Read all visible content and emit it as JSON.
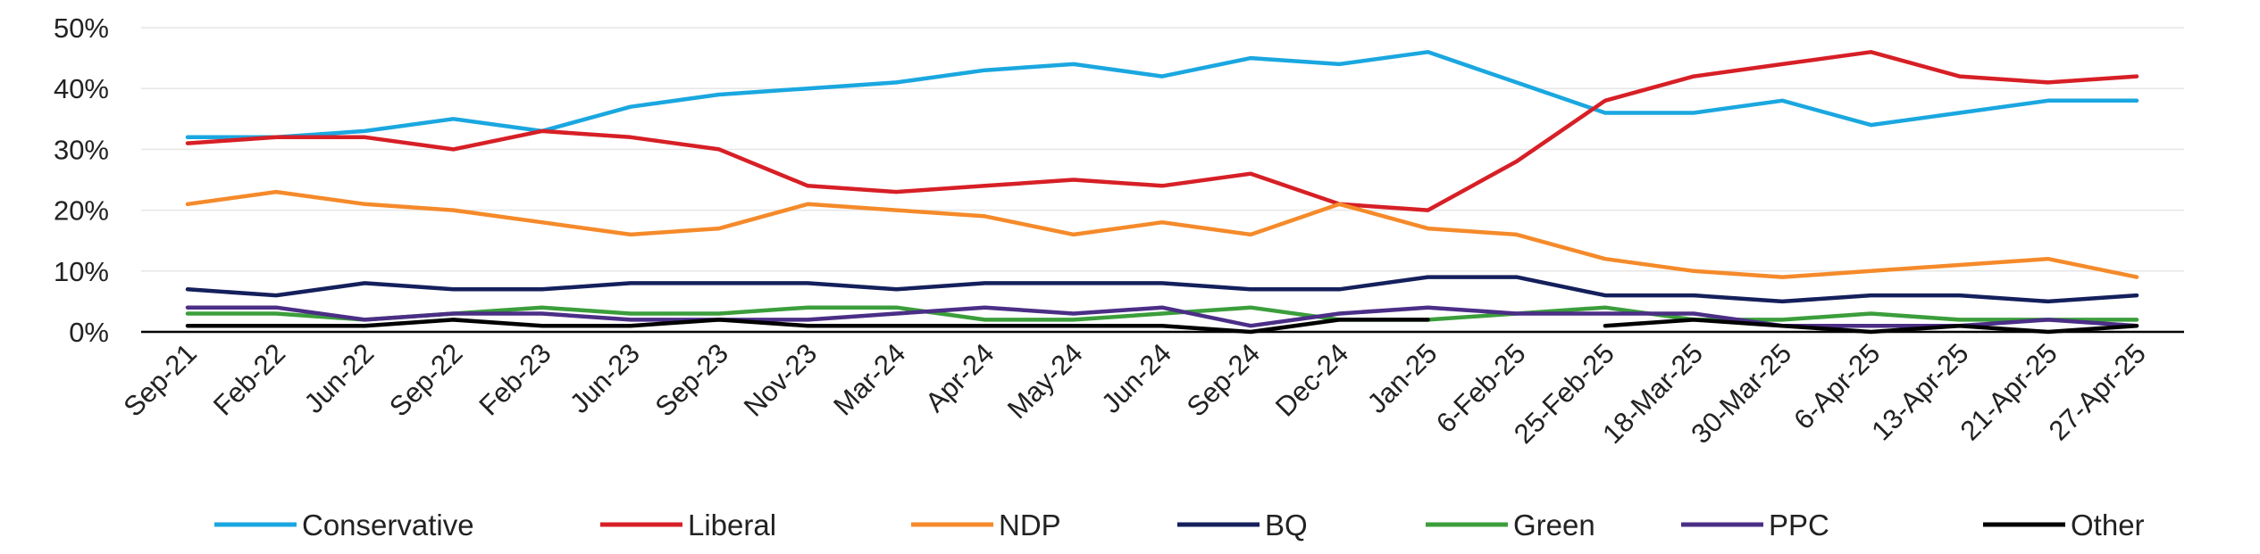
{
  "chart_data": {
    "type": "line",
    "title": "",
    "xlabel": "",
    "ylabel": "",
    "ylim": [
      0,
      50
    ],
    "yticks": [
      "0%",
      "10%",
      "20%",
      "30%",
      "40%",
      "50%"
    ],
    "ytick_values": [
      0,
      10,
      20,
      30,
      40,
      50
    ],
    "grid": true,
    "legend": "bottom",
    "categories": [
      "Sep-21",
      "Feb-22",
      "Jun-22",
      "Sep-22",
      "Feb-23",
      "Jun-23",
      "Sep-23",
      "Nov-23",
      "Mar-24",
      "Apr-24",
      "May-24",
      "Jun-24",
      "Sep-24",
      "Dec-24",
      "Jan-25",
      "6-Feb-25",
      "25-Feb-25",
      "18-Mar-25",
      "30-Mar-25",
      "6-Apr-25",
      "13-Apr-25",
      "21-Apr-25",
      "27-Apr-25"
    ],
    "series": [
      {
        "name": "Conservative",
        "color": "#1aa7e0",
        "values": [
          32,
          32,
          33,
          35,
          33,
          37,
          39,
          40,
          41,
          43,
          44,
          42,
          45,
          44,
          46,
          41,
          36,
          36,
          38,
          34,
          36,
          38,
          38
        ]
      },
      {
        "name": "Liberal",
        "color": "#d71f26",
        "values": [
          31,
          32,
          32,
          30,
          33,
          32,
          30,
          24,
          23,
          24,
          25,
          24,
          26,
          21,
          20,
          28,
          38,
          42,
          44,
          46,
          42,
          41,
          42
        ]
      },
      {
        "name": "NDP",
        "color": "#f58a2a",
        "values": [
          21,
          23,
          21,
          20,
          18,
          16,
          17,
          21,
          20,
          19,
          16,
          18,
          16,
          21,
          17,
          16,
          12,
          10,
          9,
          10,
          11,
          12,
          9
        ]
      },
      {
        "name": "BQ",
        "color": "#14205c",
        "values": [
          7,
          6,
          8,
          7,
          7,
          8,
          8,
          8,
          7,
          8,
          8,
          8,
          7,
          7,
          9,
          9,
          6,
          6,
          5,
          6,
          6,
          5,
          6
        ]
      },
      {
        "name": "Green",
        "color": "#3b9e3b",
        "values": [
          3,
          3,
          2,
          3,
          4,
          3,
          3,
          4,
          4,
          2,
          2,
          3,
          4,
          2,
          2,
          3,
          4,
          2,
          2,
          3,
          2,
          2,
          2
        ]
      },
      {
        "name": "PPC",
        "color": "#4b2e86",
        "values": [
          4,
          4,
          2,
          3,
          3,
          2,
          2,
          2,
          3,
          4,
          3,
          4,
          1,
          3,
          4,
          3,
          3,
          3,
          1,
          1,
          1,
          2,
          1
        ]
      },
      {
        "name": "Other",
        "color": "#000000",
        "values": [
          1,
          1,
          1,
          2,
          1,
          1,
          2,
          1,
          1,
          1,
          1,
          1,
          0,
          2,
          2,
          null,
          1,
          2,
          1,
          0,
          1,
          0,
          1
        ]
      }
    ]
  }
}
